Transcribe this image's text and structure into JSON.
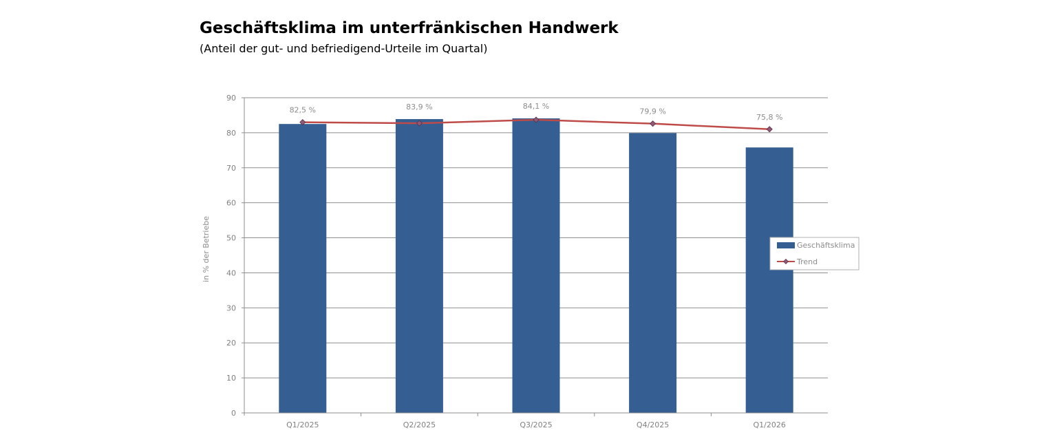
{
  "chart_data": {
    "type": "bar",
    "title": "Geschäftsklima im unterfränkischen Handwerk",
    "subtitle": "(Anteil der gut- und befriedigend-Urteile im Quartal)",
    "xlabel": "",
    "ylabel": "in % der Betriebe",
    "ylim": [
      0,
      90
    ],
    "yticks": [
      0,
      10,
      20,
      30,
      40,
      50,
      60,
      70,
      80,
      90
    ],
    "grid": true,
    "legend_position": "right",
    "categories": [
      "Q1/2025",
      "Q2/2025",
      "Q3/2025",
      "Q4/2025",
      "Q1/2026"
    ],
    "series": [
      {
        "name": "Geschäftsklima",
        "type": "bar",
        "color": "#355F93",
        "values": [
          82.5,
          83.9,
          84.1,
          79.9,
          75.8
        ],
        "labels": [
          "82,5 %",
          "83,9 %",
          "84,1 %",
          "79,9 %",
          "75,8 %"
        ]
      },
      {
        "name": "Trend",
        "type": "line",
        "color": "#BE4B48",
        "values": [
          83.0,
          82.7,
          83.7,
          82.6,
          81.0
        ]
      }
    ]
  }
}
